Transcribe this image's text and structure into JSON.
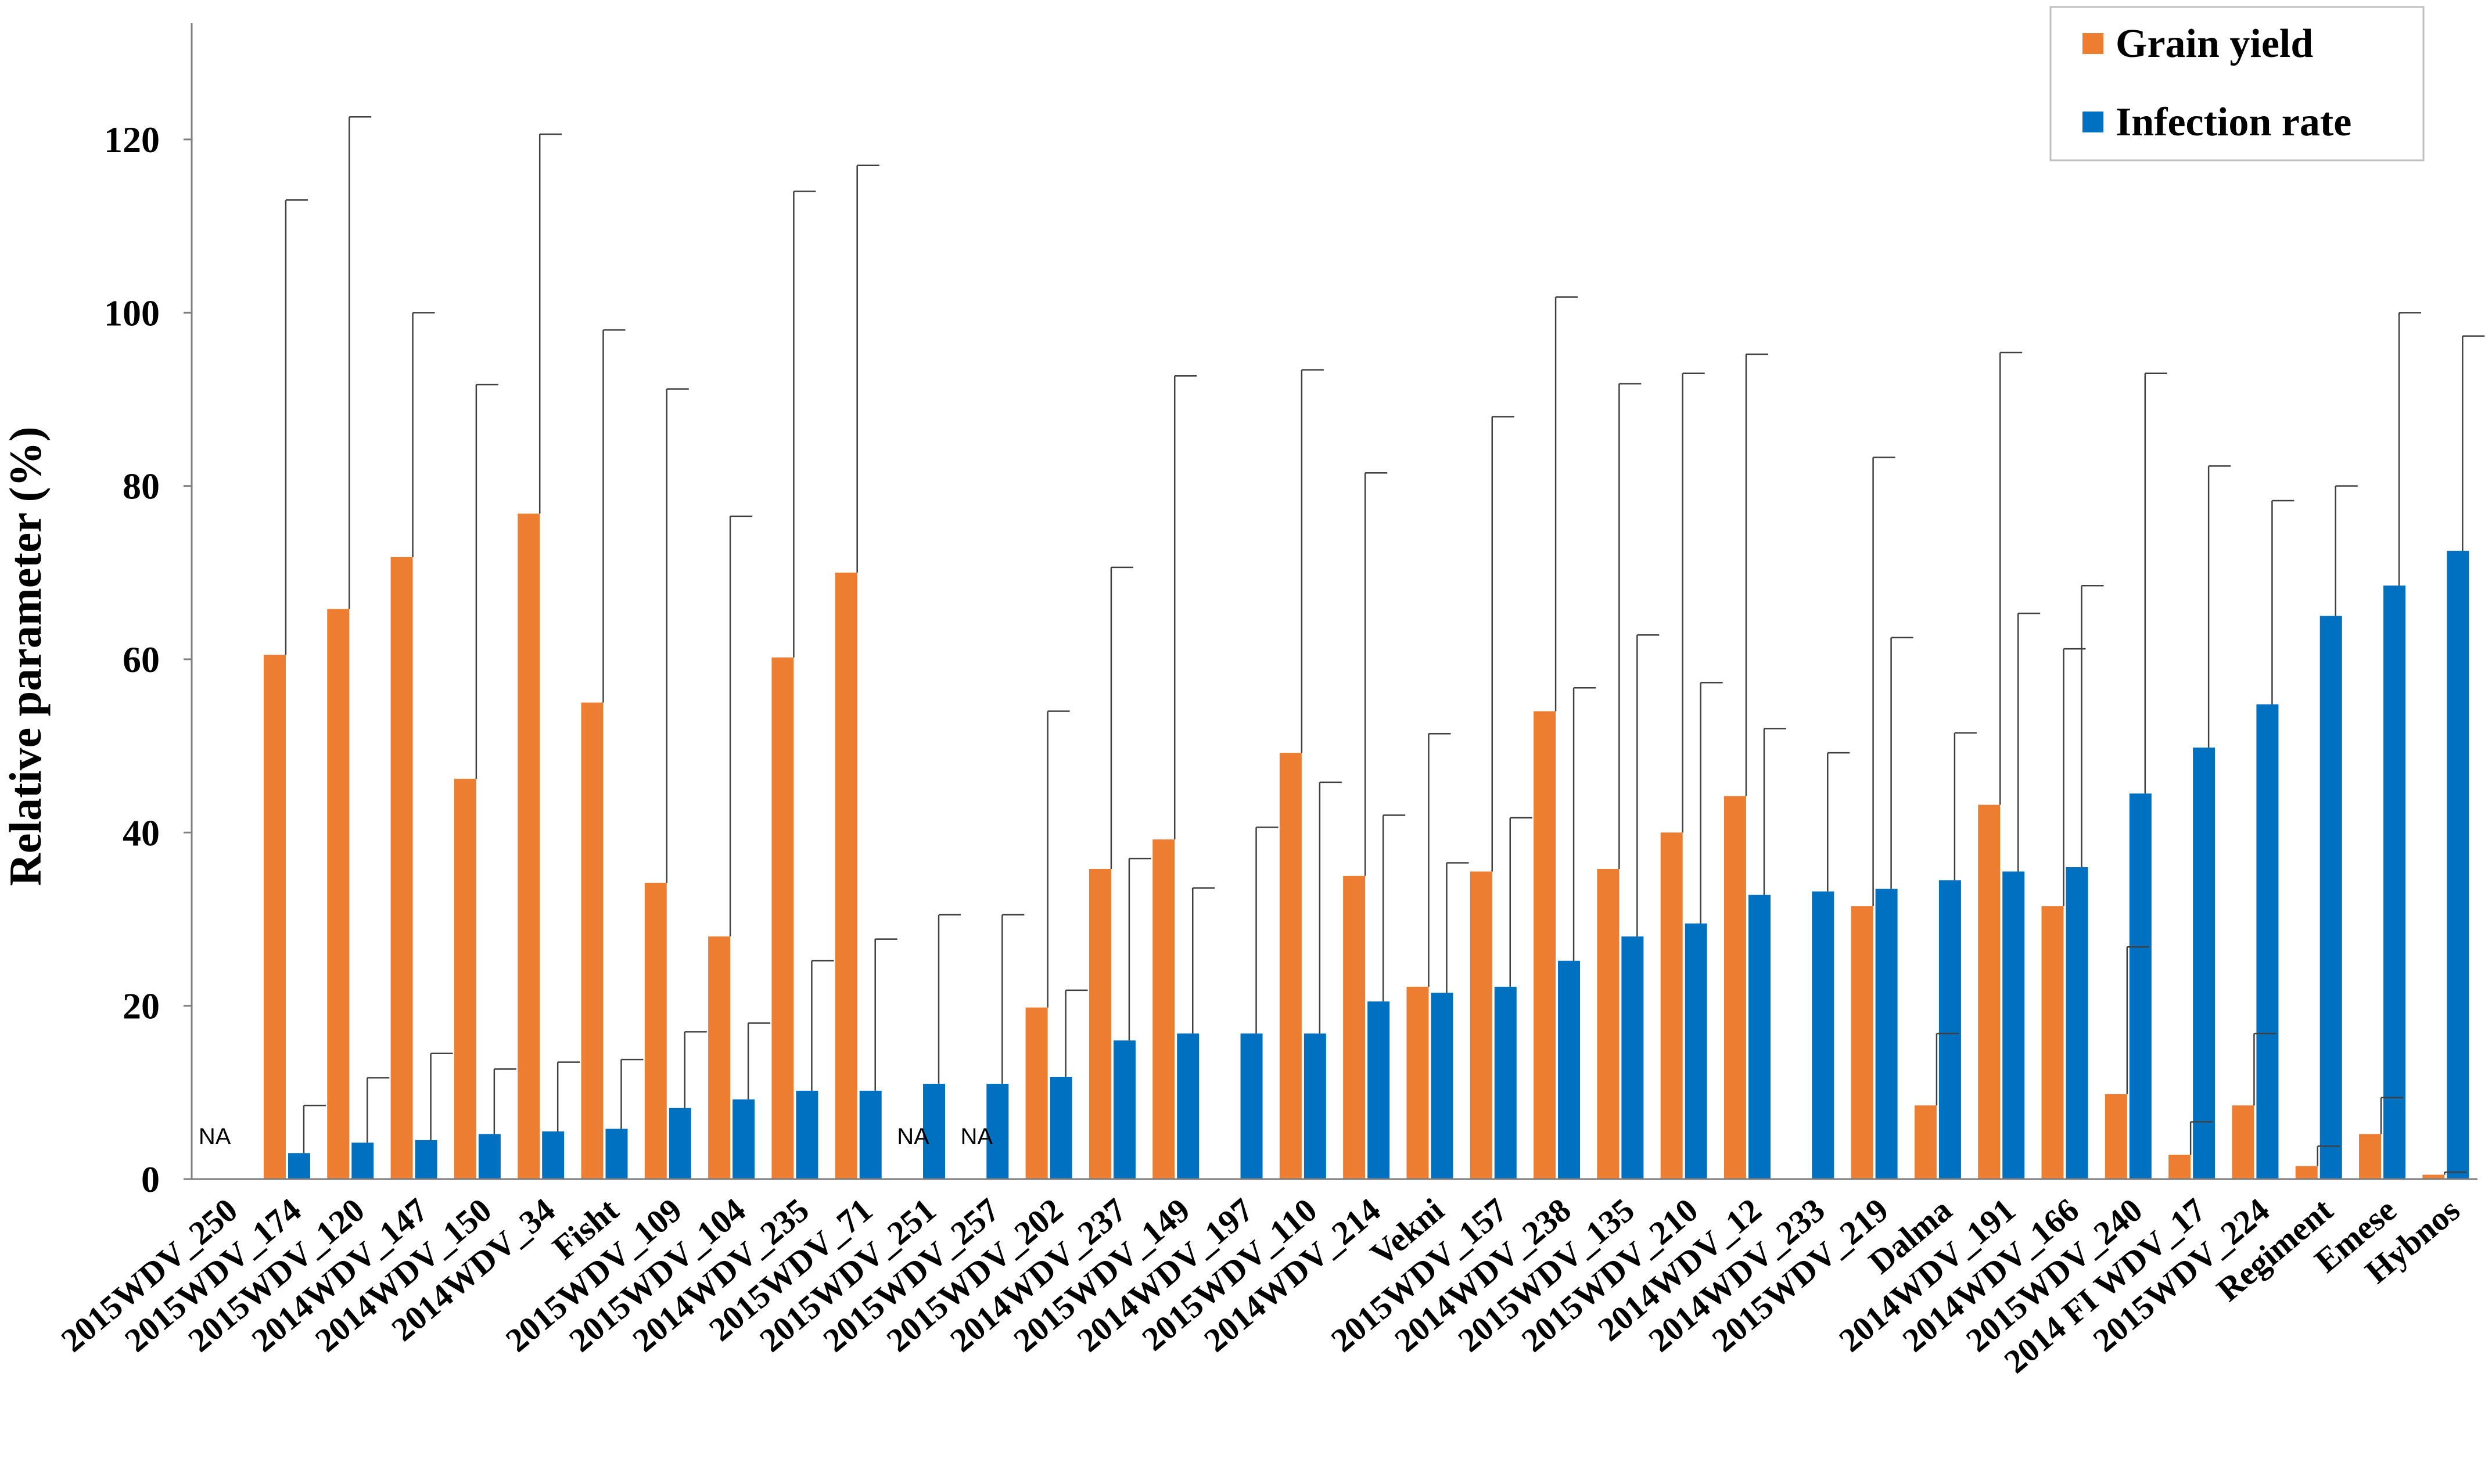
{
  "chart_data": {
    "type": "bar",
    "title": "",
    "xlabel": "",
    "ylabel": "Relative parameter (%)",
    "ylim": [
      0,
      120
    ],
    "yticks": [
      0,
      20,
      40,
      60,
      80,
      100,
      120
    ],
    "grid": false,
    "legend_position": "top-right",
    "categories": [
      "2015WDV_250",
      "2015WDV_174",
      "2015WDV_120",
      "2014WDV_147",
      "2014WDV_150",
      "2014WDV_34",
      "Fisht",
      "2015WDV_109",
      "2015WDV_104",
      "2014WDV_235",
      "2015WDV_71",
      "2015WDV_251",
      "2015WDV_257",
      "2015WDV_202",
      "2014WDV_237",
      "2015WDV_149",
      "2014WDV_197",
      "2015WDV_110",
      "2014WDV_214",
      "Vekni",
      "2015WDV_157",
      "2014WDV_238",
      "2015WDV_135",
      "2015WDV_210",
      "2014WDV_12",
      "2014WDV_233",
      "2015WDV_219",
      "Dalma",
      "2014WDV_191",
      "2014WDV_166",
      "2015WDV_240",
      "2014 FI WDV_17",
      "2015WDV_224",
      "Regiment",
      "Emese",
      "Hybnos"
    ],
    "series": [
      {
        "name": "Grain yield",
        "color": "#ED7D31",
        "values": [
          null,
          60.5,
          65.8,
          71.8,
          46.2,
          76.8,
          55,
          34.2,
          28,
          60.2,
          70,
          null,
          null,
          19.8,
          35.8,
          39.2,
          0,
          49.2,
          35,
          22.2,
          35.5,
          54,
          35.8,
          40,
          44.2,
          0,
          31.5,
          8.5,
          43.2,
          31.5,
          9.8,
          2.8,
          8.5,
          1.5,
          5.2,
          0.5
        ],
        "error": [
          null,
          52.5,
          56.8,
          28.2,
          45.5,
          43.8,
          43,
          57,
          48.5,
          53.8,
          47,
          null,
          null,
          34.2,
          34.8,
          53.5,
          0,
          44.2,
          46.5,
          29.2,
          52.5,
          47.8,
          56,
          53,
          51,
          0,
          51.8,
          8.3,
          52.2,
          29.7,
          17,
          3.8,
          8.3,
          2.3,
          4.2,
          0.3
        ]
      },
      {
        "name": "Infection rate",
        "color": "#0070C0",
        "values": [
          null,
          3,
          4.2,
          4.5,
          5.2,
          5.5,
          5.8,
          8.2,
          9.2,
          10.2,
          10.2,
          11,
          11,
          11.8,
          16,
          16.8,
          16.8,
          16.8,
          20.5,
          21.5,
          22.2,
          25.2,
          28,
          29.5,
          32.8,
          33.2,
          33.5,
          34.5,
          35.5,
          36,
          44.5,
          49.8,
          54.8,
          65,
          68.5,
          72.5
        ],
        "error": [
          null,
          5.5,
          7.5,
          10,
          7.5,
          8,
          8,
          8.8,
          8.8,
          15,
          17.5,
          19.5,
          19.5,
          10,
          21,
          16.8,
          23.8,
          29,
          21.5,
          15,
          19.5,
          31.5,
          34.8,
          27.8,
          19.2,
          16,
          29,
          17,
          29.8,
          32.5,
          48.5,
          32.5,
          23.5,
          15,
          31.5,
          24.8
        ]
      }
    ],
    "annotations": [
      {
        "category_index": 0,
        "text": "NA"
      },
      {
        "category_index": 11,
        "text": "NA"
      },
      {
        "category_index": 12,
        "text": "NA"
      }
    ]
  }
}
